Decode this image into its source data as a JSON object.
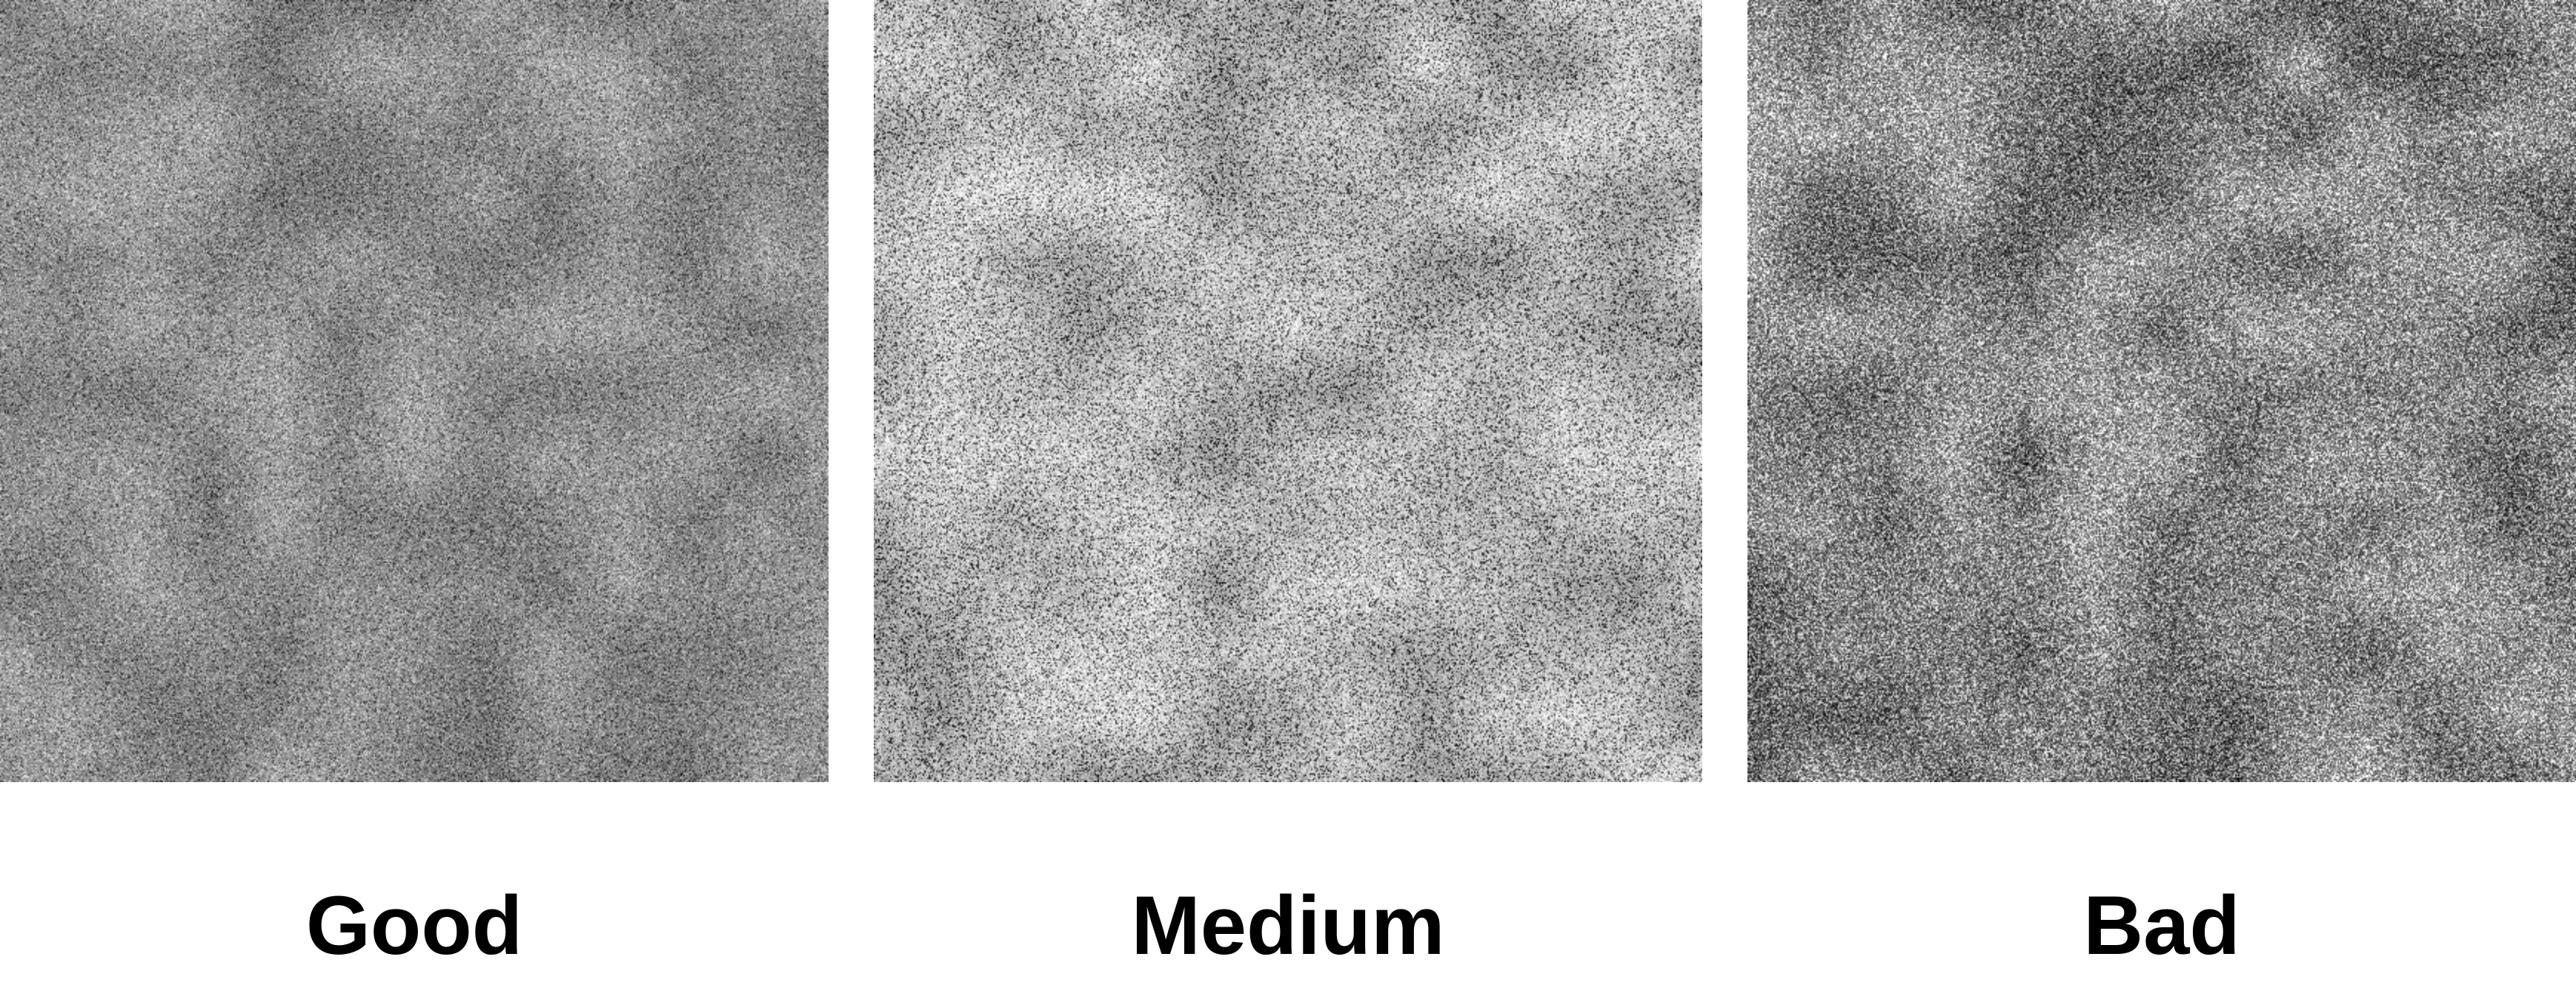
{
  "panels": [
    {
      "label": "Good",
      "texture": {
        "mean_gray": "#8c8c8c",
        "contrast": 0.55,
        "speckle_dark": "#2a2a2a",
        "speckle_light": "#d8d8d8"
      }
    },
    {
      "label": "Medium",
      "texture": {
        "mean_gray": "#b4b4b4",
        "contrast": 0.75,
        "speckle_dark": "#1e1e1e",
        "speckle_light": "#eeeeee"
      }
    },
    {
      "label": "Bad",
      "texture": {
        "mean_gray": "#7e7e7e",
        "contrast": 0.85,
        "speckle_dark": "#202020",
        "speckle_light": "#f0f0f0"
      }
    }
  ]
}
